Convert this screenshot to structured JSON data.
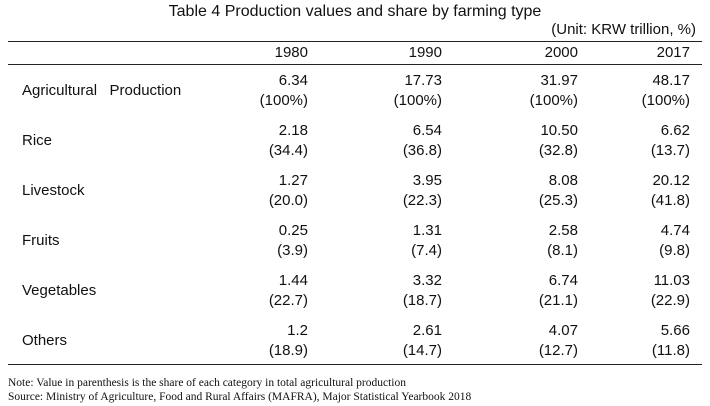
{
  "table": {
    "title": "Table 4 Production values and share by farming type",
    "unit": "(Unit: KRW trillion, %)",
    "years": [
      "1980",
      "1990",
      "2000",
      "2017"
    ],
    "rows": [
      {
        "category": "Agricultural   Production",
        "values": [
          "6.34",
          "17.73",
          "31.97",
          "48.17"
        ],
        "shares": [
          "(100%)",
          "(100%)",
          "(100%)",
          "(100%)"
        ]
      },
      {
        "category": "Rice",
        "values": [
          "2.18",
          "6.54",
          "10.50",
          "6.62"
        ],
        "shares": [
          "(34.4)",
          "(36.8)",
          "(32.8)",
          "(13.7)"
        ]
      },
      {
        "category": "Livestock",
        "values": [
          "1.27",
          "3.95",
          "8.08",
          "20.12"
        ],
        "shares": [
          "(20.0)",
          "(22.3)",
          "(25.3)",
          "(41.8)"
        ]
      },
      {
        "category": "Fruits",
        "values": [
          "0.25",
          "1.31",
          "2.58",
          "4.74"
        ],
        "shares": [
          "(3.9)",
          "(7.4)",
          "(8.1)",
          "(9.8)"
        ]
      },
      {
        "category": "Vegetables",
        "values": [
          "1.44",
          "3.32",
          "6.74",
          "11.03"
        ],
        "shares": [
          "(22.7)",
          "(18.7)",
          "(21.1)",
          "(22.9)"
        ]
      },
      {
        "category": "Others",
        "values": [
          "1.2",
          "2.61",
          "4.07",
          "5.66"
        ],
        "shares": [
          "(18.9)",
          "(14.7)",
          "(12.7)",
          "(11.8)"
        ]
      }
    ]
  },
  "notes": {
    "note": "Note: Value in parenthesis is the share of each category in total agricultural production",
    "source": "Source: Ministry of Agriculture, Food and Rural Affairs (MAFRA), Major Statistical Yearbook 2018"
  }
}
